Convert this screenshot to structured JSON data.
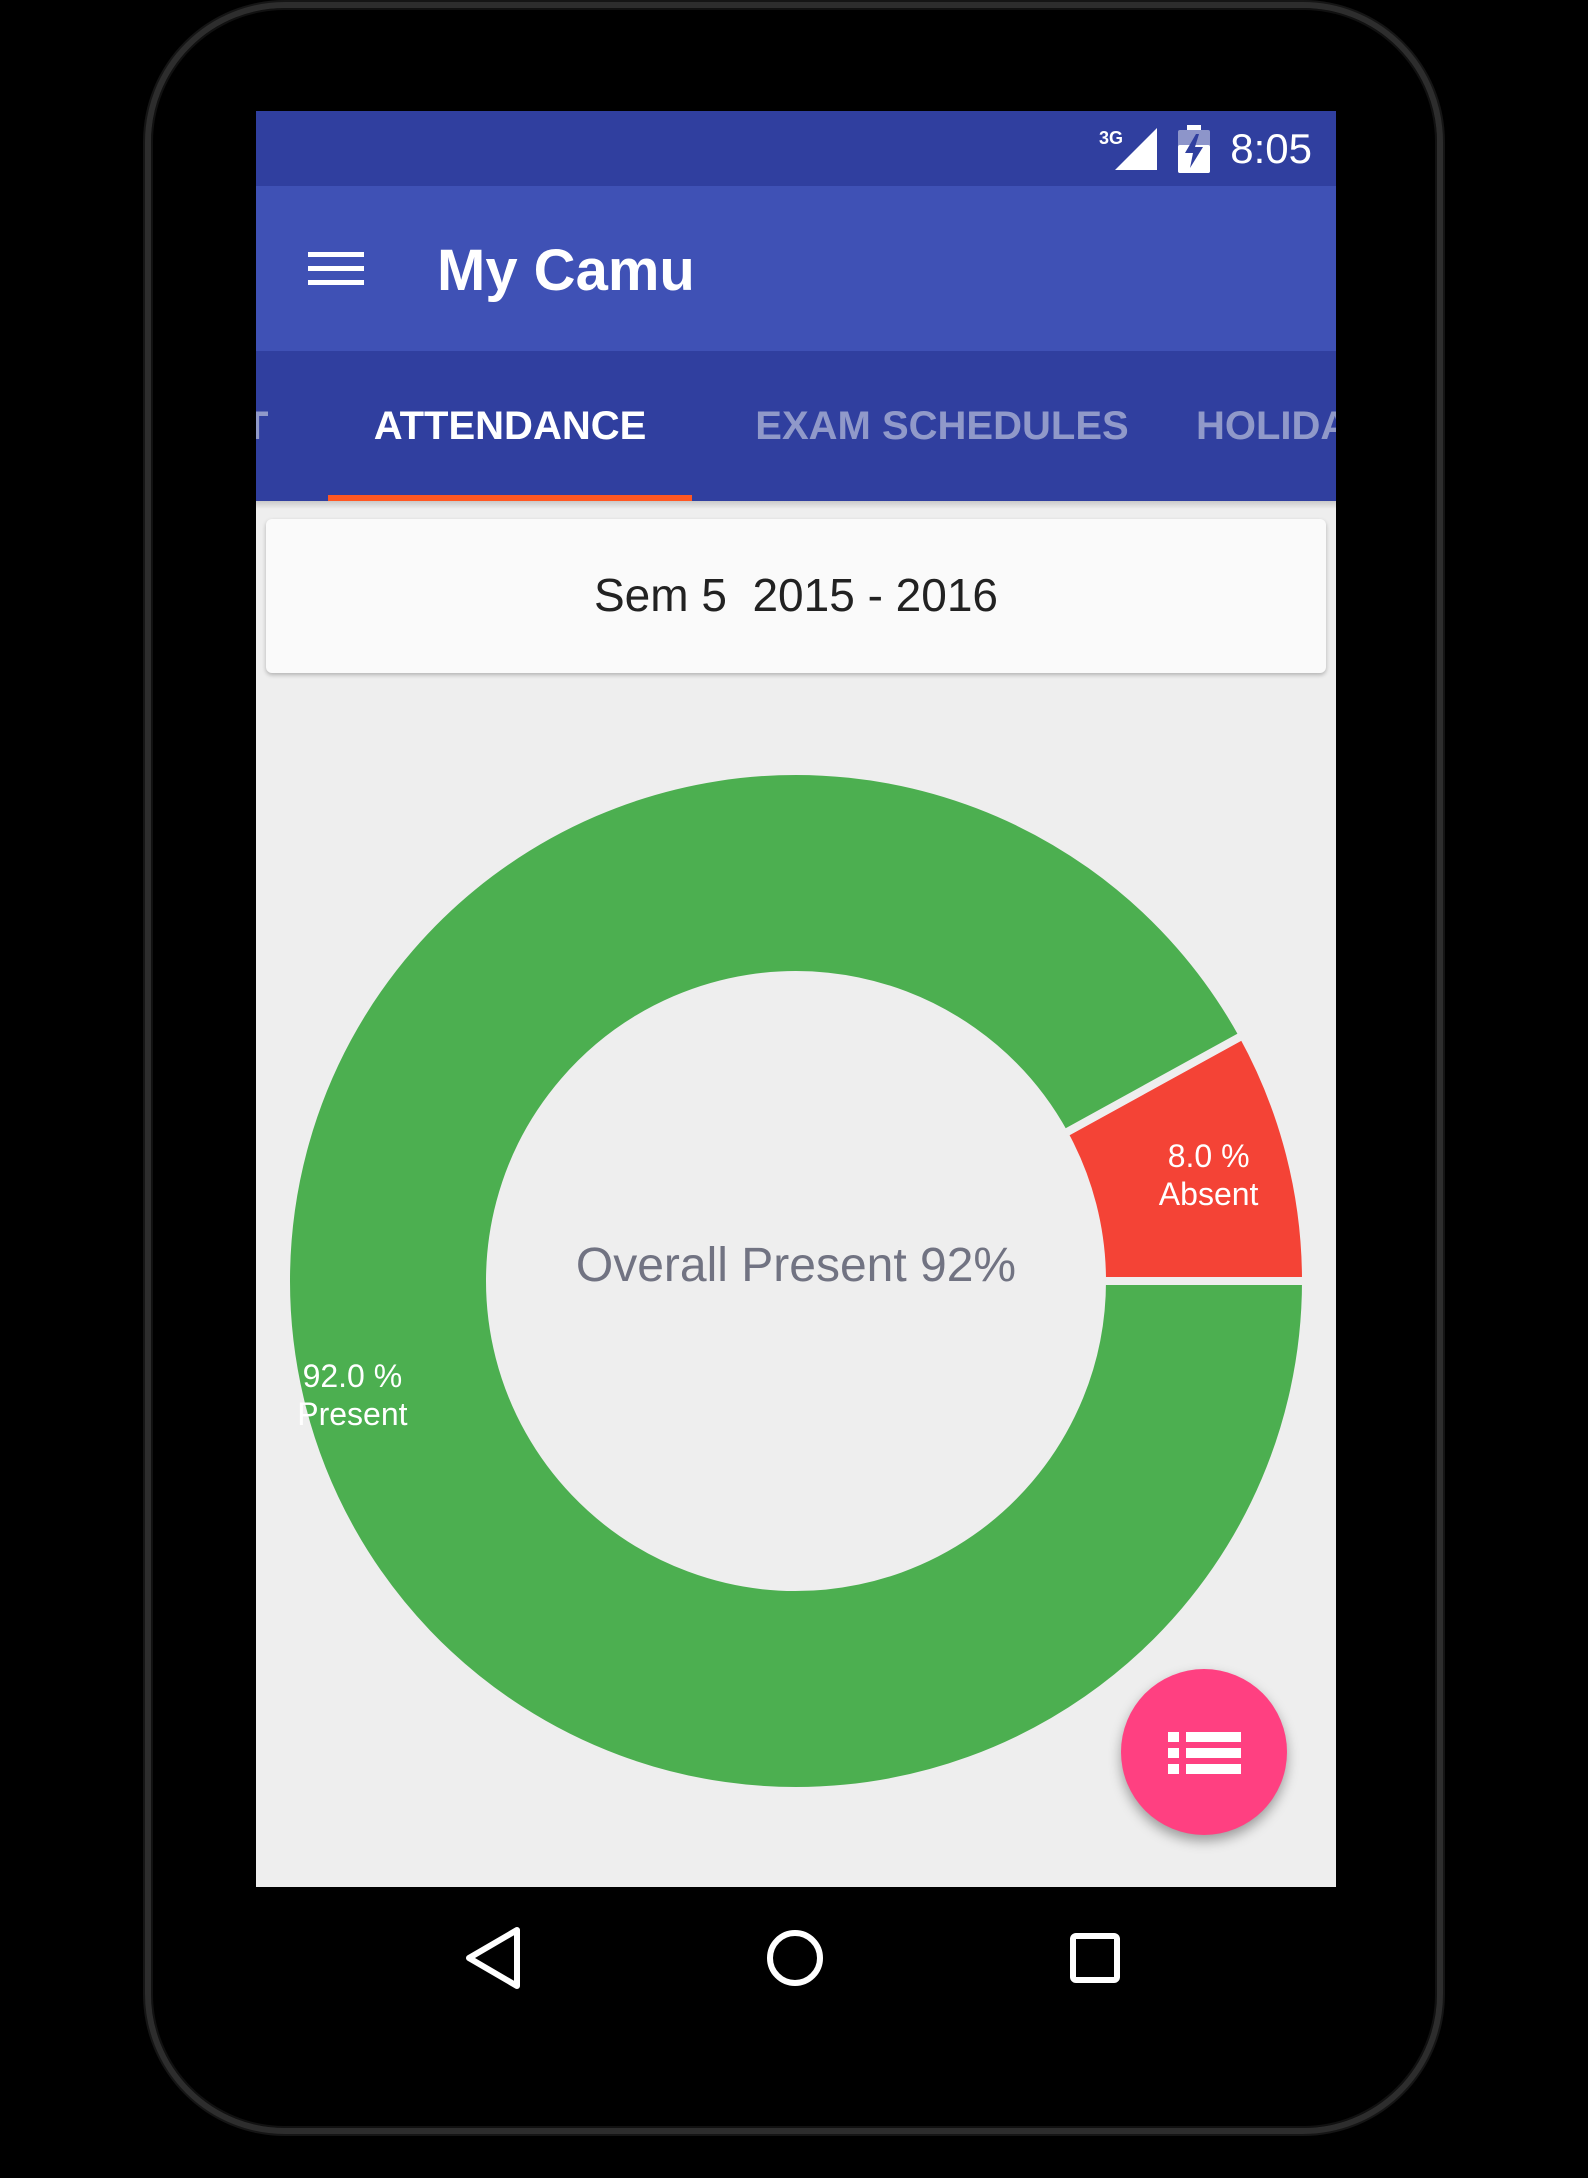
{
  "status_bar": {
    "network_type": "3G",
    "time": "8:05"
  },
  "app_bar": {
    "title": "My Camu",
    "menu_icon": "hamburger-menu-icon"
  },
  "tabs": [
    {
      "label": "T",
      "active": false
    },
    {
      "label": "ATTENDANCE",
      "active": true
    },
    {
      "label": "EXAM SCHEDULES",
      "active": false
    },
    {
      "label": "HOLIDA",
      "active": false
    }
  ],
  "semester_selector": {
    "label": "Sem 5  2015 - 2016"
  },
  "chart_data": {
    "type": "pie",
    "style": "donut",
    "center_text": "Overall Present 92%",
    "slices": [
      {
        "label": "Absent",
        "value": 8.0,
        "value_text": "8.0 %",
        "color": "#f44336"
      },
      {
        "label": "Present",
        "value": 92.0,
        "value_text": "92.0 %",
        "color": "#4caf50"
      }
    ]
  },
  "fab": {
    "icon": "list-icon",
    "color": "#ff4081"
  },
  "nav_bar": {
    "back_icon": "back-icon",
    "home_icon": "home-icon",
    "recents_icon": "recents-icon"
  },
  "colors": {
    "primary": "#3f51b5",
    "primary_dark": "#303f9f",
    "accent": "#ff4081",
    "tab_indicator": "#ff5722",
    "background": "#eeeeee"
  }
}
